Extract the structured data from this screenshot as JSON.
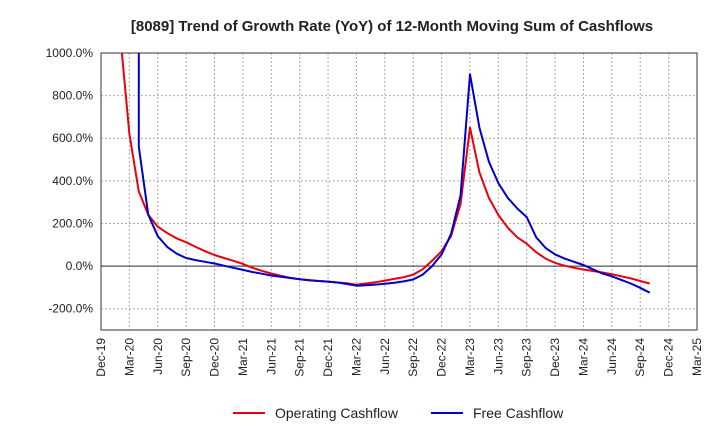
{
  "chart_data": {
    "type": "line",
    "title": "[8089]  Trend of Growth Rate (YoY) of 12-Month Moving Sum of Cashflows",
    "xlabel": "",
    "ylabel": "",
    "ylim": [
      -300,
      1000
    ],
    "y_ticks": [
      -200,
      0,
      200,
      400,
      600,
      800,
      1000
    ],
    "y_tick_labels": [
      "-200.0%",
      "0.0%",
      "200.0%",
      "400.0%",
      "600.0%",
      "800.0%",
      "1000.0%"
    ],
    "x_ticks": [
      "Dec-19",
      "Mar-20",
      "Jun-20",
      "Sep-20",
      "Dec-20",
      "Mar-21",
      "Jun-21",
      "Sep-21",
      "Dec-21",
      "Mar-22",
      "Jun-22",
      "Sep-22",
      "Dec-22",
      "Mar-23",
      "Jun-23",
      "Sep-23",
      "Dec-23",
      "Mar-24",
      "Jun-24",
      "Sep-24",
      "Dec-24",
      "Mar-25"
    ],
    "grid": true,
    "legend_position": "bottom",
    "colors": {
      "operating": "#e8000b",
      "free": "#0000cc",
      "grid": "#aaaaaa",
      "axis": "#333333"
    },
    "series": [
      {
        "name": "Operating Cashflow",
        "color": "#e8000b",
        "points": [
          [
            "Feb-20",
            1100
          ],
          [
            "Mar-20",
            620
          ],
          [
            "Apr-20",
            350
          ],
          [
            "May-20",
            240
          ],
          [
            "Jun-20",
            185
          ],
          [
            "Jul-20",
            155
          ],
          [
            "Aug-20",
            130
          ],
          [
            "Sep-20",
            112
          ],
          [
            "Oct-20",
            90
          ],
          [
            "Nov-20",
            70
          ],
          [
            "Dec-20",
            52
          ],
          [
            "Jan-21",
            38
          ],
          [
            "Feb-21",
            25
          ],
          [
            "Mar-21",
            10
          ],
          [
            "Apr-21",
            -8
          ],
          [
            "May-21",
            -22
          ],
          [
            "Jun-21",
            -35
          ],
          [
            "Jul-21",
            -45
          ],
          [
            "Aug-21",
            -55
          ],
          [
            "Sep-21",
            -62
          ],
          [
            "Oct-21",
            -67
          ],
          [
            "Nov-21",
            -70
          ],
          [
            "Dec-21",
            -73
          ],
          [
            "Jan-22",
            -77
          ],
          [
            "Feb-22",
            -81
          ],
          [
            "Mar-22",
            -88
          ],
          [
            "Apr-22",
            -82
          ],
          [
            "May-22",
            -76
          ],
          [
            "Jun-22",
            -68
          ],
          [
            "Jul-22",
            -60
          ],
          [
            "Aug-22",
            -52
          ],
          [
            "Sep-22",
            -40
          ],
          [
            "Oct-22",
            -15
          ],
          [
            "Nov-22",
            25
          ],
          [
            "Dec-22",
            70
          ],
          [
            "Jan-23",
            140
          ],
          [
            "Feb-23",
            290
          ],
          [
            "Mar-23",
            650
          ],
          [
            "Apr-23",
            440
          ],
          [
            "May-23",
            320
          ],
          [
            "Jun-23",
            240
          ],
          [
            "Jul-23",
            180
          ],
          [
            "Aug-23",
            135
          ],
          [
            "Sep-23",
            105
          ],
          [
            "Oct-23",
            65
          ],
          [
            "Nov-23",
            35
          ],
          [
            "Dec-23",
            15
          ],
          [
            "Jan-24",
            2
          ],
          [
            "Feb-24",
            -8
          ],
          [
            "Mar-24",
            -16
          ],
          [
            "Apr-24",
            -23
          ],
          [
            "May-24",
            -30
          ],
          [
            "Jun-24",
            -38
          ],
          [
            "Jul-24",
            -48
          ],
          [
            "Aug-24",
            -58
          ],
          [
            "Sep-24",
            -70
          ],
          [
            "Oct-24",
            -82
          ]
        ]
      },
      {
        "name": "Free Cashflow",
        "color": "#0000cc",
        "points": [
          [
            "Apr-20",
            1100
          ],
          [
            "Apr-20",
            560
          ],
          [
            "May-20",
            240
          ],
          [
            "Jun-20",
            140
          ],
          [
            "Jul-20",
            90
          ],
          [
            "Aug-20",
            58
          ],
          [
            "Sep-20",
            38
          ],
          [
            "Oct-20",
            28
          ],
          [
            "Nov-20",
            20
          ],
          [
            "Dec-20",
            12
          ],
          [
            "Jan-21",
            2
          ],
          [
            "Feb-21",
            -8
          ],
          [
            "Mar-21",
            -18
          ],
          [
            "Apr-21",
            -28
          ],
          [
            "May-21",
            -36
          ],
          [
            "Jun-21",
            -44
          ],
          [
            "Jul-21",
            -50
          ],
          [
            "Aug-21",
            -56
          ],
          [
            "Sep-21",
            -62
          ],
          [
            "Oct-21",
            -66
          ],
          [
            "Nov-21",
            -70
          ],
          [
            "Dec-21",
            -73
          ],
          [
            "Jan-22",
            -77
          ],
          [
            "Feb-22",
            -84
          ],
          [
            "Mar-22",
            -92
          ],
          [
            "Apr-22",
            -90
          ],
          [
            "May-22",
            -87
          ],
          [
            "Jun-22",
            -83
          ],
          [
            "Jul-22",
            -78
          ],
          [
            "Aug-22",
            -72
          ],
          [
            "Sep-22",
            -63
          ],
          [
            "Oct-22",
            -40
          ],
          [
            "Nov-22",
            0
          ],
          [
            "Dec-22",
            55
          ],
          [
            "Jan-23",
            150
          ],
          [
            "Feb-23",
            330
          ],
          [
            "Mar-23",
            900
          ],
          [
            "Apr-23",
            650
          ],
          [
            "May-23",
            490
          ],
          [
            "Jun-23",
            390
          ],
          [
            "Jul-23",
            320
          ],
          [
            "Aug-23",
            270
          ],
          [
            "Sep-23",
            230
          ],
          [
            "Oct-23",
            135
          ],
          [
            "Nov-23",
            85
          ],
          [
            "Dec-23",
            55
          ],
          [
            "Jan-24",
            35
          ],
          [
            "Feb-24",
            20
          ],
          [
            "Mar-24",
            5
          ],
          [
            "Apr-24",
            -15
          ],
          [
            "May-24",
            -35
          ],
          [
            "Jun-24",
            -48
          ],
          [
            "Jul-24",
            -65
          ],
          [
            "Aug-24",
            -82
          ],
          [
            "Sep-24",
            -102
          ],
          [
            "Oct-24",
            -125
          ]
        ]
      }
    ]
  }
}
